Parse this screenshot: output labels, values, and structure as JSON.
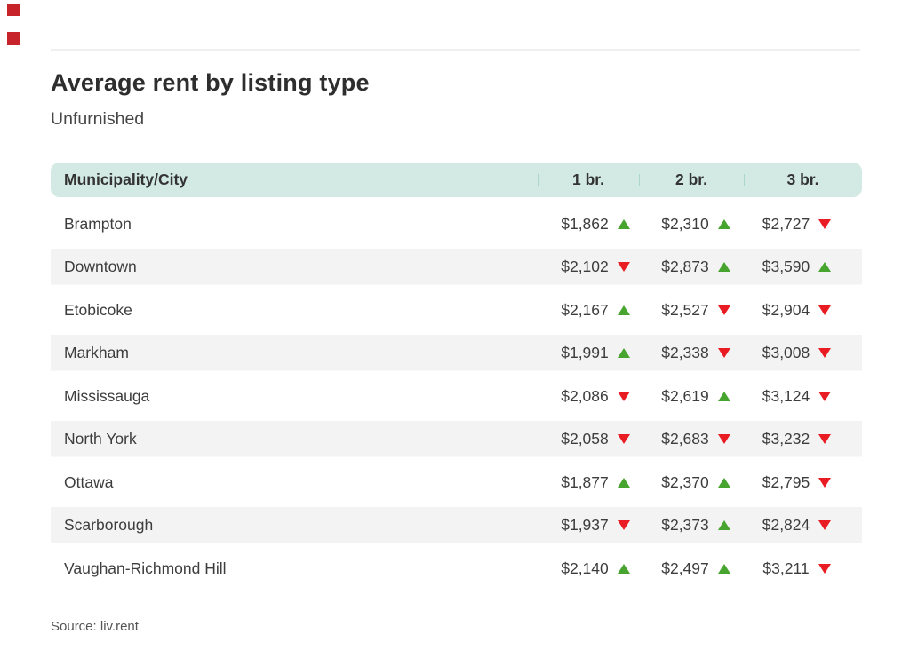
{
  "title": "Average rent by listing type",
  "subtitle": "Unfurnished",
  "source": "Source: liv.rent",
  "colors": {
    "header_bg": "#d2eae3",
    "header_divider": "#abd7ca",
    "stripe": "#f3f3f3",
    "trend_up": "#47a42e",
    "trend_down": "#e91c23",
    "accent_square": "#c7232b",
    "top_rule": "#efefef",
    "title_text": "#2e2e2e",
    "body_text": "#3d3d3d",
    "muted_text": "#545454"
  },
  "chart_data": {
    "type": "table",
    "title": "Average rent by listing type",
    "subtitle": "Unfurnished",
    "columns": [
      "Municipality/City",
      "1 br.",
      "2 br.",
      "3 br."
    ],
    "rows": [
      {
        "city": "Brampton",
        "values": [
          "$1,862",
          "$2,310",
          "$2,727"
        ],
        "rents": [
          1862,
          2310,
          2727
        ],
        "trends": [
          "up",
          "up",
          "down"
        ]
      },
      {
        "city": "Downtown",
        "values": [
          "$2,102",
          "$2,873",
          "$3,590"
        ],
        "rents": [
          2102,
          2873,
          3590
        ],
        "trends": [
          "down",
          "up",
          "up"
        ]
      },
      {
        "city": "Etobicoke",
        "values": [
          "$2,167",
          "$2,527",
          "$2,904"
        ],
        "rents": [
          2167,
          2527,
          2904
        ],
        "trends": [
          "up",
          "down",
          "down"
        ]
      },
      {
        "city": "Markham",
        "values": [
          "$1,991",
          "$2,338",
          "$3,008"
        ],
        "rents": [
          1991,
          2338,
          3008
        ],
        "trends": [
          "up",
          "down",
          "down"
        ]
      },
      {
        "city": "Mississauga",
        "values": [
          "$2,086",
          "$2,619",
          "$3,124"
        ],
        "rents": [
          2086,
          2619,
          3124
        ],
        "trends": [
          "down",
          "up",
          "down"
        ]
      },
      {
        "city": "North York",
        "values": [
          "$2,058",
          "$2,683",
          "$3,232"
        ],
        "rents": [
          2058,
          2683,
          3232
        ],
        "trends": [
          "down",
          "down",
          "down"
        ]
      },
      {
        "city": "Ottawa",
        "values": [
          "$1,877",
          "$2,370",
          "$2,795"
        ],
        "rents": [
          1877,
          2370,
          2795
        ],
        "trends": [
          "up",
          "up",
          "down"
        ]
      },
      {
        "city": "Scarborough",
        "values": [
          "$1,937",
          "$2,373",
          "$2,824"
        ],
        "rents": [
          1937,
          2373,
          2824
        ],
        "trends": [
          "down",
          "up",
          "down"
        ]
      },
      {
        "city": "Vaughan-Richmond Hill",
        "values": [
          "$2,140",
          "$2,497",
          "$3,211"
        ],
        "rents": [
          2140,
          2497,
          3211
        ],
        "trends": [
          "up",
          "up",
          "down"
        ]
      }
    ],
    "trend_legend": {
      "up": "increase",
      "down": "decrease"
    },
    "source": "Source: liv.rent"
  }
}
